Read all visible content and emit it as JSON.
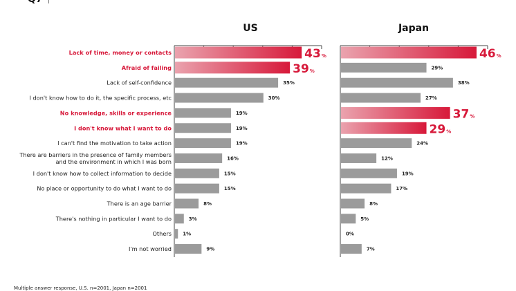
{
  "header": {
    "question_label": "Q7"
  },
  "footnote": "Multiple answer response, U.S. n=2001, Japan n=2001",
  "colors": {
    "highlight": "#d7193a",
    "highlight_light": "#eaa3ae",
    "neutral_bar": "#9b9b9b",
    "axis": "#444444"
  },
  "chart_data": {
    "type": "bar",
    "orientation": "horizontal",
    "categories": [
      "Lack of time, money or contacts",
      "Afraid of failing",
      "Lack of self-confidence",
      "I don't know how to do it, the specific process, etc",
      "No knowledge, skills or experience",
      "I don't know what I want to do",
      "I can't find the motivation to take action",
      "There are barriers in the presence of family members\nand the environment in which I was born",
      "I don't know how to collect information to decide",
      "No place or opportunity to do what I want to do",
      "There is an age barrier",
      "There's nothing in particular I want to do",
      "Others",
      "I'm not worried"
    ],
    "highlighted_categories": [
      0,
      1,
      4,
      5
    ],
    "series": [
      {
        "name": "US",
        "values": [
          43,
          39,
          35,
          30,
          19,
          19,
          19,
          16,
          15,
          15,
          8,
          3,
          1,
          9
        ],
        "highlighted": [
          0,
          1
        ]
      },
      {
        "name": "Japan",
        "values": [
          46,
          29,
          38,
          27,
          37,
          29,
          24,
          12,
          19,
          17,
          8,
          5,
          0,
          7
        ],
        "highlighted": [
          0,
          4,
          5
        ]
      }
    ],
    "value_suffix": "%",
    "xlim": [
      0,
      50
    ],
    "xtick_step": 10,
    "xlabel": "",
    "ylabel": "",
    "grid": false,
    "legend": "none",
    "panel_titles": [
      "US",
      "Japan"
    ]
  }
}
